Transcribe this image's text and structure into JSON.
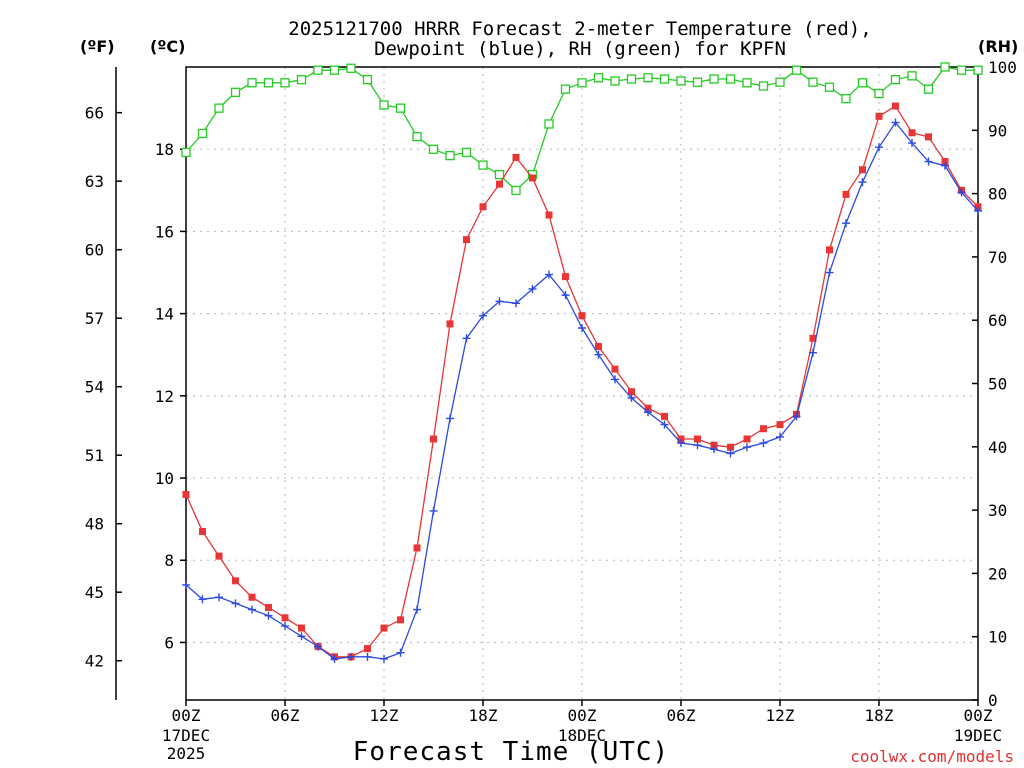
{
  "chart_data": {
    "type": "line",
    "title_line1": "2025121700 HRRR Forecast 2-meter Temperature (red),",
    "title_line2": "Dewpoint (blue), RH (green) for KPFN",
    "unit_f": "(ºF)",
    "unit_c": "(ºC)",
    "unit_rh": "(RH)",
    "xlabel": "Forecast Time (UTC)",
    "credit": "coolwx.com/models",
    "x_range_hours": [
      0,
      48
    ],
    "ylim_c": [
      4.6,
      20.0
    ],
    "ylim_rh": [
      0,
      100
    ],
    "left_ticks_c": [
      "6",
      "8",
      "10",
      "12",
      "14",
      "16",
      "18"
    ],
    "left_ticks_f": [
      "42",
      "45",
      "48",
      "51",
      "54",
      "57",
      "60",
      "63",
      "66"
    ],
    "right_ticks_rh": [
      "0",
      "10",
      "20",
      "30",
      "40",
      "50",
      "60",
      "70",
      "80",
      "90",
      "100"
    ],
    "x_ticks": [
      {
        "hour": 0,
        "label": "00Z",
        "sub1": "17DEC",
        "sub2": "2025"
      },
      {
        "hour": 6,
        "label": "06Z",
        "sub1": "",
        "sub2": ""
      },
      {
        "hour": 12,
        "label": "12Z",
        "sub1": "",
        "sub2": ""
      },
      {
        "hour": 18,
        "label": "18Z",
        "sub1": "",
        "sub2": ""
      },
      {
        "hour": 24,
        "label": "00Z",
        "sub1": "18DEC",
        "sub2": ""
      },
      {
        "hour": 30,
        "label": "06Z",
        "sub1": "",
        "sub2": ""
      },
      {
        "hour": 36,
        "label": "12Z",
        "sub1": "",
        "sub2": ""
      },
      {
        "hour": 42,
        "label": "18Z",
        "sub1": "",
        "sub2": ""
      },
      {
        "hour": 48,
        "label": "00Z",
        "sub1": "19DEC",
        "sub2": ""
      }
    ],
    "series": [
      {
        "name": "Temperature",
        "units": "C",
        "color": "#e83535",
        "marker": "square-filled",
        "values": [
          9.6,
          8.7,
          8.1,
          7.5,
          7.1,
          6.85,
          6.6,
          6.35,
          5.9,
          5.65,
          5.65,
          5.85,
          6.35,
          6.55,
          8.3,
          10.95,
          13.75,
          15.8,
          16.6,
          17.15,
          17.8,
          17.3,
          16.4,
          14.9,
          13.95,
          13.2,
          12.65,
          12.1,
          11.7,
          11.5,
          10.95,
          10.95,
          10.8,
          10.75,
          10.95,
          11.2,
          11.3,
          11.55,
          13.4,
          15.55,
          16.9,
          17.5,
          18.8,
          19.05,
          18.4,
          18.3,
          17.7,
          17.0,
          16.6
        ]
      },
      {
        "name": "Dewpoint",
        "units": "C",
        "color": "#2a4ae0",
        "marker": "plus",
        "values": [
          7.4,
          7.05,
          7.1,
          6.95,
          6.8,
          6.65,
          6.4,
          6.15,
          5.9,
          5.6,
          5.65,
          5.65,
          5.6,
          5.75,
          6.8,
          9.2,
          11.45,
          13.4,
          13.95,
          14.3,
          14.25,
          14.6,
          14.95,
          14.45,
          13.65,
          13.0,
          12.4,
          11.95,
          11.6,
          11.3,
          10.85,
          10.8,
          10.7,
          10.6,
          10.75,
          10.85,
          11.0,
          11.5,
          13.05,
          15.0,
          16.2,
          17.2,
          18.05,
          18.65,
          18.15,
          17.7,
          17.6,
          16.95,
          16.5
        ]
      },
      {
        "name": "RH",
        "units": "%",
        "color": "#22cc22",
        "marker": "square-open",
        "values": [
          86.5,
          89.5,
          93.5,
          96,
          97.5,
          97.5,
          97.5,
          98,
          99.5,
          99.5,
          99.8,
          98,
          94,
          93.5,
          89,
          87,
          86,
          86.5,
          84.5,
          83,
          80.5,
          83,
          91,
          96.5,
          97.5,
          98.3,
          97.8,
          98.1,
          98.3,
          98.1,
          97.8,
          97.6,
          98.1,
          98.1,
          97.5,
          97,
          97.6,
          99.5,
          97.6,
          96.8,
          95,
          97.5,
          95.8,
          98,
          98.6,
          96.5,
          100,
          99.5,
          99.5
        ]
      }
    ]
  }
}
